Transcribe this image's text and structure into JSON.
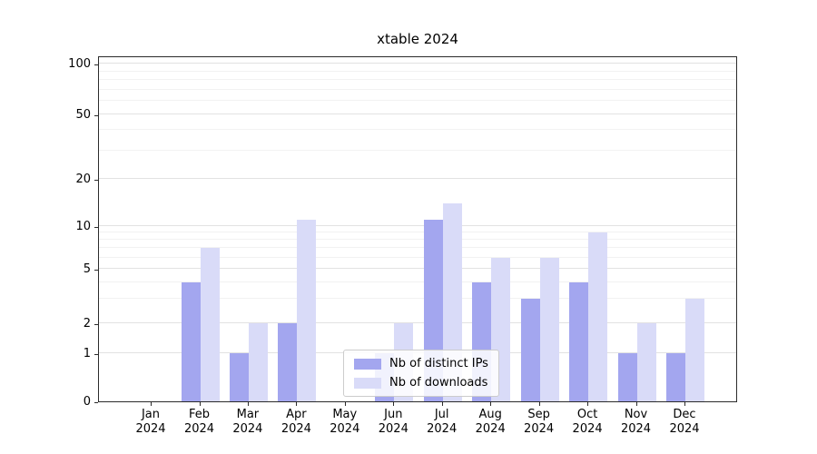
{
  "chart_data": {
    "type": "bar",
    "title": "xtable 2024",
    "categories": [
      "Jan",
      "Feb",
      "Mar",
      "Apr",
      "May",
      "Jun",
      "Jul",
      "Aug",
      "Sep",
      "Oct",
      "Nov",
      "Dec"
    ],
    "year": "2024",
    "series": [
      {
        "name": "Nb of distinct IPs",
        "color": "#a3a6ef",
        "values": [
          0,
          4,
          1,
          2,
          0,
          1,
          11,
          4,
          3,
          4,
          1,
          1
        ]
      },
      {
        "name": "Nb of downloads",
        "color": "#d9dbf8",
        "values": [
          0,
          7,
          2,
          11,
          0,
          2,
          14,
          6,
          6,
          9,
          2,
          3
        ]
      }
    ],
    "yscale": "symlog",
    "yticks": [
      0,
      1,
      2,
      5,
      10,
      20,
      50,
      100
    ],
    "minor_yticks": [
      3,
      4,
      6,
      7,
      8,
      9,
      30,
      40,
      60,
      70,
      80,
      90
    ],
    "ylim": [
      0,
      110
    ],
    "grid": "horizontal, major and minor",
    "legend_position": "lower center, inside plot"
  }
}
